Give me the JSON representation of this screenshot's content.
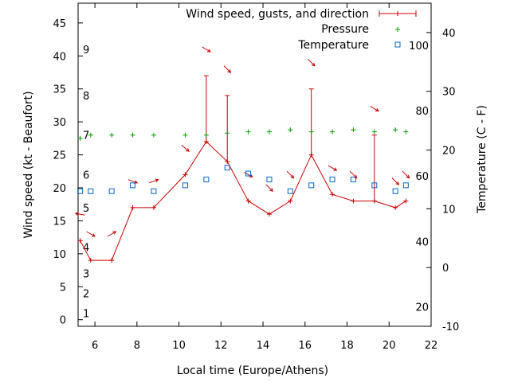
{
  "chart_data": {
    "type": "line",
    "xlabel": "Local time (Europe/Athens)",
    "ylabel": "Wind speed (kt - Beaufort)",
    "y2label": "Temperature (C - F)",
    "xlim": [
      5.2,
      22
    ],
    "ylim": [
      -1,
      48
    ],
    "y2lim": [
      -10,
      45
    ],
    "x_ticks": [
      6,
      8,
      10,
      12,
      14,
      16,
      18,
      20,
      22
    ],
    "y_ticks": [
      0,
      5,
      10,
      15,
      20,
      25,
      30,
      35,
      40,
      45
    ],
    "y2_ticks": [
      -10,
      0,
      10,
      20,
      30,
      40
    ],
    "beaufort_labels": [
      {
        "label": "1",
        "y": 1
      },
      {
        "label": "2",
        "y": 4
      },
      {
        "label": "3",
        "y": 7
      },
      {
        "label": "4",
        "y": 11
      },
      {
        "label": "5",
        "y": 17
      },
      {
        "label": "6",
        "y": 22
      },
      {
        "label": "7",
        "y": 28
      },
      {
        "label": "8",
        "y": 34
      },
      {
        "label": "9",
        "y": 41
      }
    ],
    "fahrenheit_labels": [
      {
        "label": "20",
        "t": -6.7
      },
      {
        "label": "40",
        "t": 4.4
      },
      {
        "label": "60",
        "t": 15.6
      },
      {
        "label": "80",
        "t": 26.7
      },
      {
        "label": "100",
        "t": 37.8
      }
    ],
    "legend_position": "top-right",
    "series": [
      {
        "name": "Wind speed, gusts, and direction",
        "color": "#cc0000",
        "x": [
          5.3,
          5.8,
          6.8,
          7.8,
          8.8,
          10.3,
          11.3,
          12.3,
          13.3,
          14.3,
          15.3,
          16.3,
          17.3,
          18.3,
          19.3,
          20.3,
          20.8
        ],
        "values": [
          12,
          9,
          9,
          17,
          17,
          22,
          27,
          24,
          18,
          16,
          18,
          25,
          19,
          18,
          18,
          17,
          18
        ],
        "gusts": [
          null,
          null,
          null,
          null,
          null,
          null,
          37,
          34,
          null,
          null,
          null,
          35,
          null,
          null,
          28,
          null,
          null
        ],
        "arrows": [
          {
            "x": 5.3,
            "y": 16,
            "dir": 100
          },
          {
            "x": 5.8,
            "y": 13,
            "dir": 300
          },
          {
            "x": 6.8,
            "y": 13,
            "dir": 240
          },
          {
            "x": 7.8,
            "y": 21,
            "dir": 290
          },
          {
            "x": 8.8,
            "y": 21,
            "dir": 250
          },
          {
            "x": 10.3,
            "y": 26,
            "dir": 310
          },
          {
            "x": 11.3,
            "y": 41,
            "dir": 300
          },
          {
            "x": 12.3,
            "y": 38,
            "dir": 315
          },
          {
            "x": 13.3,
            "y": 22,
            "dir": 300
          },
          {
            "x": 14.3,
            "y": 20,
            "dir": 315
          },
          {
            "x": 15.3,
            "y": 22,
            "dir": 315
          },
          {
            "x": 16.3,
            "y": 39,
            "dir": 315
          },
          {
            "x": 17.3,
            "y": 23,
            "dir": 300
          },
          {
            "x": 18.3,
            "y": 22,
            "dir": 315
          },
          {
            "x": 19.3,
            "y": 32,
            "dir": 300
          },
          {
            "x": 20.3,
            "y": 21,
            "dir": 315
          },
          {
            "x": 20.8,
            "y": 22,
            "dir": 315
          }
        ]
      },
      {
        "name": "Pressure",
        "color": "#00a000",
        "x": [
          5.3,
          5.8,
          6.8,
          7.8,
          8.8,
          10.3,
          11.3,
          12.3,
          13.3,
          14.3,
          15.3,
          16.3,
          17.3,
          18.3,
          19.3,
          20.3,
          20.8
        ],
        "values": [
          27.5,
          28,
          28,
          28,
          28,
          28,
          28,
          28.3,
          28.5,
          28.5,
          28.8,
          28.5,
          28.5,
          28.8,
          28.5,
          28.8,
          28.5
        ]
      },
      {
        "name": "Temperature",
        "color": "#0066cc",
        "x": [
          5.3,
          5.8,
          6.8,
          7.8,
          8.8,
          10.3,
          11.3,
          12.3,
          13.3,
          14.3,
          15.3,
          16.3,
          17.3,
          18.3,
          19.3,
          20.3,
          20.8
        ],
        "values": [
          13,
          13,
          13,
          14,
          13,
          14,
          15,
          17,
          16,
          15,
          13,
          14,
          15,
          15,
          14,
          13,
          14
        ]
      }
    ]
  }
}
